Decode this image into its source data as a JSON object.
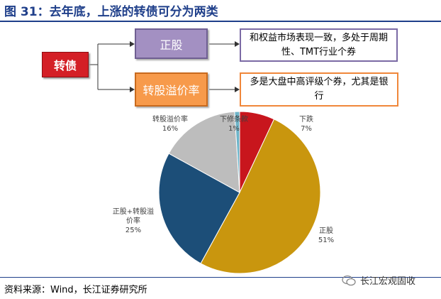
{
  "header": {
    "title": "图 31：去年底，上涨的转债可分为两类"
  },
  "diagram": {
    "root": "转债",
    "branch_a": "正股",
    "branch_b": "转股溢价率",
    "desc_a": "和权益市场表现一致，多处于周期性、TMT行业个券",
    "desc_b": "多是大盘中高评级个券，尤其是银行"
  },
  "chart_data": {
    "type": "pie",
    "title": "",
    "slices": [
      {
        "label": "下跌",
        "value": 7,
        "value_label": "7%",
        "color": "#c8161d"
      },
      {
        "label": "正股",
        "value": 51,
        "value_label": "51%",
        "color": "#c9960e"
      },
      {
        "label": "正股+转股溢价率",
        "label_lines": [
          "正股+转股溢",
          "价率"
        ],
        "value": 25,
        "value_label": "25%",
        "color": "#1c4e78"
      },
      {
        "label": "转股溢价率",
        "value": 16,
        "value_label": "16%",
        "color": "#bdbdbd"
      },
      {
        "label": "下修条款",
        "value": 1,
        "value_label": "1%",
        "color": "#6fb4c8"
      }
    ]
  },
  "footer": {
    "source": "资料来源：Wind，长江证券研究所",
    "watermark": "长江宏观固收"
  }
}
